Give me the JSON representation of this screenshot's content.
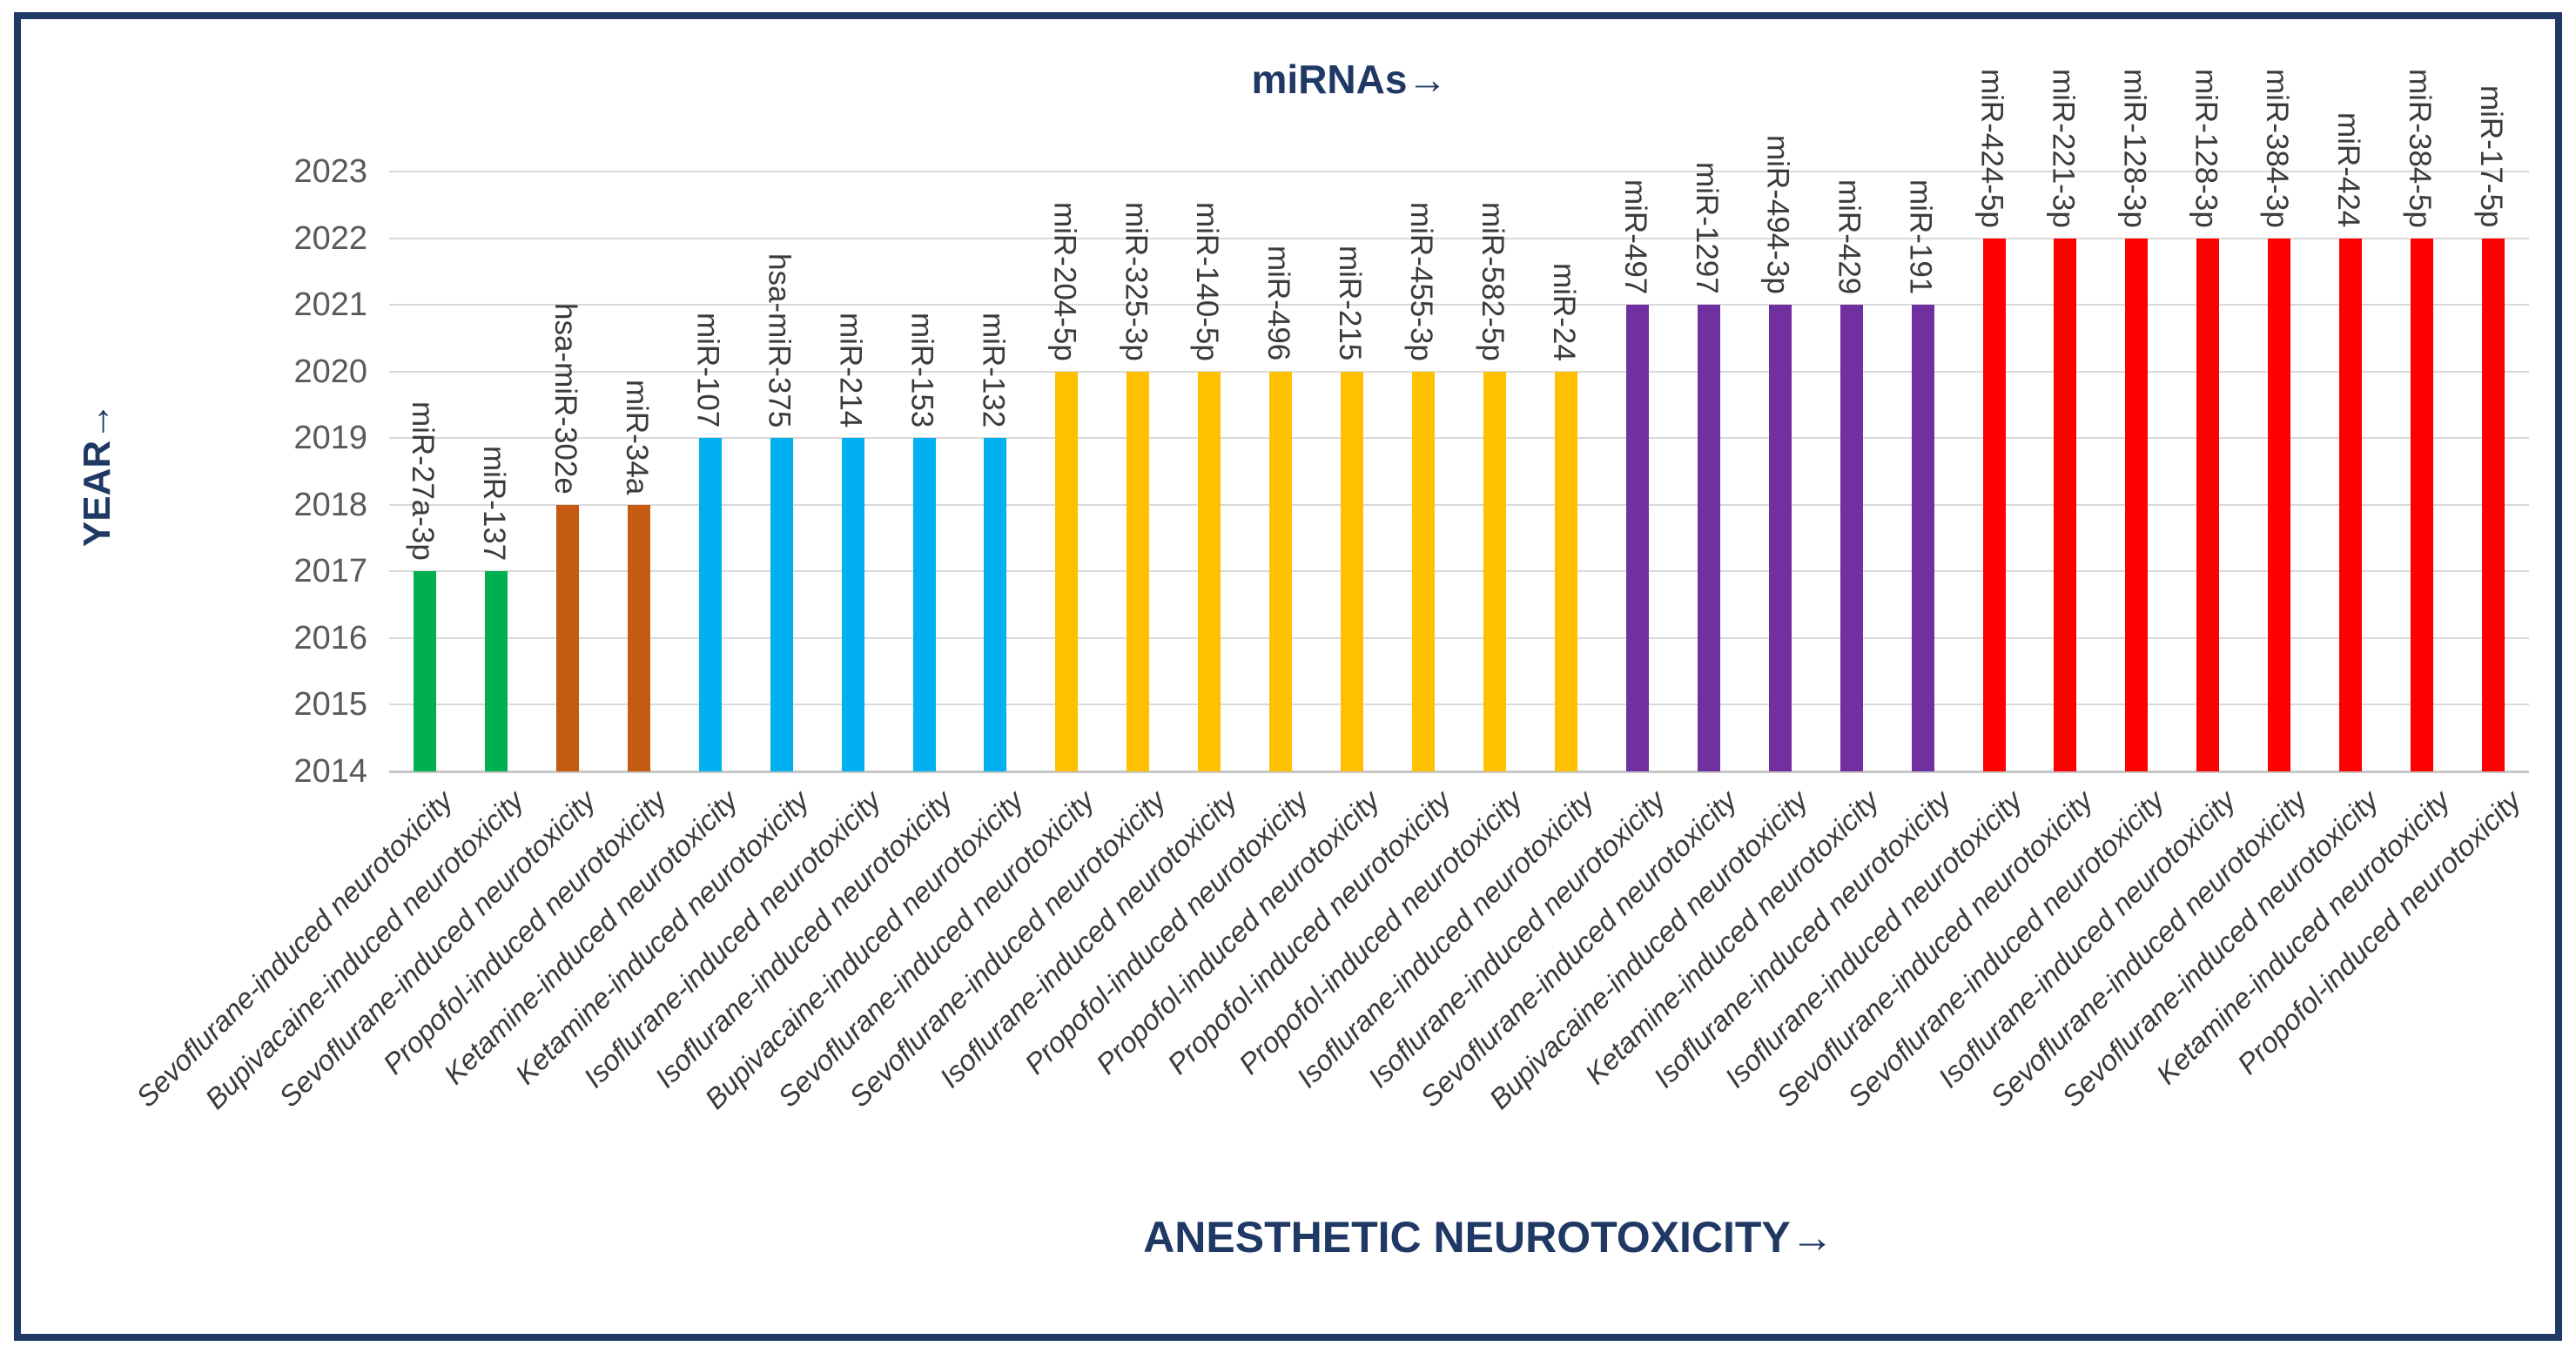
{
  "frame": {
    "border_color": "#1f3864",
    "background": "#ffffff"
  },
  "chart_data": {
    "type": "bar",
    "title": "miRNAs→",
    "xlabel": "ANESTHETIC NEUROTOXICITY→",
    "ylabel": "YEAR→",
    "ylim": [
      2014,
      2023
    ],
    "y_ticks": [
      "2014",
      "2015",
      "2016",
      "2017",
      "2018",
      "2019",
      "2020",
      "2021",
      "2022",
      "2023"
    ],
    "baseline_year": 2014,
    "grid": "horizontal",
    "legend": "none",
    "colors": {
      "green": "#00b050",
      "brown": "#c55a11",
      "blue": "#00b0f0",
      "yellow": "#ffc000",
      "purple": "#7030a0",
      "red": "#ff0000"
    },
    "bars": [
      {
        "mirna": "miR-27a-3p",
        "year": 2017,
        "color": "green",
        "anesthetic": "Sevoflurane-induced neurotoxicity"
      },
      {
        "mirna": "miR-137",
        "year": 2017,
        "color": "green",
        "anesthetic": "Bupivacaine-induced neurotoxicity"
      },
      {
        "mirna": "hsa-miR-302e",
        "year": 2018,
        "color": "brown",
        "anesthetic": "Sevoflurane-induced neurotoxicity"
      },
      {
        "mirna": "miR-34a",
        "year": 2018,
        "color": "brown",
        "anesthetic": "Propofol-induced neurotoxicity"
      },
      {
        "mirna": "miR-107",
        "year": 2019,
        "color": "blue",
        "anesthetic": "Ketamine-induced neurotoxicity"
      },
      {
        "mirna": "hsa-miR-375",
        "year": 2019,
        "color": "blue",
        "anesthetic": "Ketamine-induced neurotoxicity"
      },
      {
        "mirna": "miR-214",
        "year": 2019,
        "color": "blue",
        "anesthetic": "Isoflurane-induced neurotoxicity"
      },
      {
        "mirna": "miR-153",
        "year": 2019,
        "color": "blue",
        "anesthetic": "Isoflurane-induced neurotoxicity"
      },
      {
        "mirna": "miR-132",
        "year": 2019,
        "color": "blue",
        "anesthetic": "Bupivacaine-induced neurotoxicity"
      },
      {
        "mirna": "miR-204-5p",
        "year": 2020,
        "color": "yellow",
        "anesthetic": "Sevoflurane-induced neurotoxicity"
      },
      {
        "mirna": "miR-325-3p",
        "year": 2020,
        "color": "yellow",
        "anesthetic": "Sevoflurane-induced neurotoxicity"
      },
      {
        "mirna": "miR-140-5p",
        "year": 2020,
        "color": "yellow",
        "anesthetic": "Isoflurane-induced neurotoxicity"
      },
      {
        "mirna": "miR-496",
        "year": 2020,
        "color": "yellow",
        "anesthetic": "Propofol-induced neurotoxicity"
      },
      {
        "mirna": "miR-215",
        "year": 2020,
        "color": "yellow",
        "anesthetic": "Propofol-induced neurotoxicity"
      },
      {
        "mirna": "miR-455-3p",
        "year": 2020,
        "color": "yellow",
        "anesthetic": "Propofol-induced neurotoxicity"
      },
      {
        "mirna": "miR-582-5p",
        "year": 2020,
        "color": "yellow",
        "anesthetic": "Propofol-induced neurotoxicity"
      },
      {
        "mirna": "miR-24",
        "year": 2020,
        "color": "yellow",
        "anesthetic": "Isoflurane-induced neurotoxicity"
      },
      {
        "mirna": "miR-497",
        "year": 2021,
        "color": "purple",
        "anesthetic": "Isoflurane-induced neurotoxicity"
      },
      {
        "mirna": "miR-1297",
        "year": 2021,
        "color": "purple",
        "anesthetic": "Sevoflurane-induced neurotoxicity"
      },
      {
        "mirna": "miR-494-3p",
        "year": 2021,
        "color": "purple",
        "anesthetic": "Bupivacaine-induced neurotoxicity"
      },
      {
        "mirna": "miR-429",
        "year": 2021,
        "color": "purple",
        "anesthetic": "Ketamine-induced neurotoxicity"
      },
      {
        "mirna": "miR-191",
        "year": 2021,
        "color": "purple",
        "anesthetic": "Isoflurane-induced neurotoxicity"
      },
      {
        "mirna": "miR-424-5p",
        "year": 2022,
        "color": "red",
        "anesthetic": "Isoflurane-induced neurotoxicity"
      },
      {
        "mirna": "miR-221-3p",
        "year": 2022,
        "color": "red",
        "anesthetic": "Sevoflurane-induced neurotoxicity"
      },
      {
        "mirna": "miR-128-3p",
        "year": 2022,
        "color": "red",
        "anesthetic": "Sevoflurane-induced neurotoxicity"
      },
      {
        "mirna": "miR-128-3p",
        "year": 2022,
        "color": "red",
        "anesthetic": "Isoflurane-induced neurotoxicity"
      },
      {
        "mirna": "miR-384-3p",
        "year": 2022,
        "color": "red",
        "anesthetic": "Sevoflurane-induced neurotoxicity"
      },
      {
        "mirna": "miR-424",
        "year": 2022,
        "color": "red",
        "anesthetic": "Sevoflurane-induced neurotoxicity"
      },
      {
        "mirna": "miR-384-5p",
        "year": 2022,
        "color": "red",
        "anesthetic": "Ketamine-induced neurotoxicity"
      },
      {
        "mirna": "miR-17-5p",
        "year": 2022,
        "color": "red",
        "anesthetic": "Propofol-induced neurotoxicity"
      }
    ]
  }
}
